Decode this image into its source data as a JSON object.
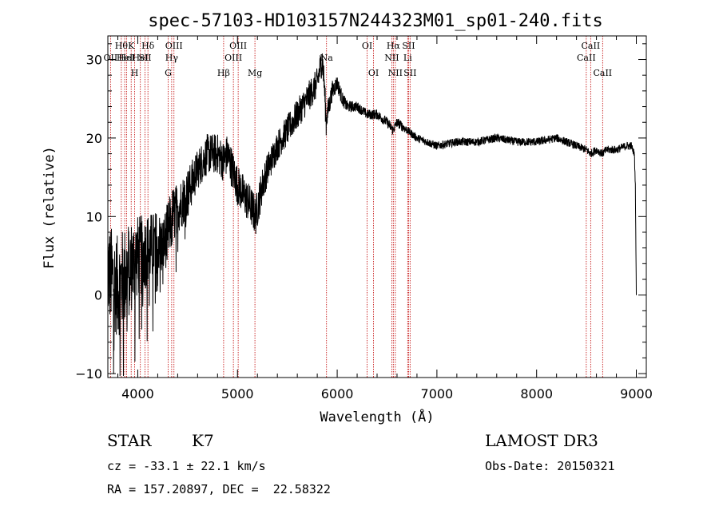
{
  "chart_data": {
    "type": "line",
    "title": "spec-57103-HD103157N244323M01_sp01-240.fits",
    "xlabel": "Wavelength (Å)",
    "ylabel": "Flux (relative)",
    "xlim": [
      3700,
      9100
    ],
    "ylim": [
      -10.5,
      33
    ],
    "xticks": [
      4000,
      5000,
      6000,
      7000,
      8000,
      9000
    ],
    "yticks": [
      -10,
      0,
      10,
      20,
      30
    ],
    "spectrum_anchors": {
      "x": [
        3700,
        3750,
        3800,
        3850,
        3900,
        3950,
        4000,
        4050,
        4100,
        4150,
        4200,
        4250,
        4300,
        4350,
        4400,
        4450,
        4500,
        4600,
        4700,
        4800,
        4860,
        4900,
        4950,
        5000,
        5050,
        5100,
        5150,
        5180,
        5250,
        5300,
        5400,
        5500,
        5600,
        5700,
        5750,
        5800,
        5830,
        5850,
        5870,
        5890,
        5900,
        5950,
        6000,
        6050,
        6100,
        6200,
        6300,
        6400,
        6500,
        6560,
        6600,
        6700,
        6800,
        6900,
        7000,
        7200,
        7400,
        7600,
        7800,
        8000,
        8200,
        8400,
        8500,
        8540,
        8600,
        8660,
        8700,
        8800,
        8900,
        8950,
        8980,
        8990,
        9000
      ],
      "y": [
        3,
        2,
        1,
        2,
        3,
        4,
        5,
        5,
        6,
        6,
        7,
        6,
        8,
        10,
        11,
        12,
        13,
        16,
        18,
        18,
        17,
        18,
        16,
        14,
        13,
        12,
        11,
        10,
        14,
        16,
        19,
        21,
        23,
        25,
        26,
        27,
        29,
        30,
        27,
        22,
        23,
        26,
        27,
        25,
        24,
        24,
        23,
        23,
        22,
        21,
        22,
        21,
        20,
        19.5,
        19,
        19.5,
        19.5,
        20,
        19.5,
        19.5,
        20,
        19,
        18.5,
        18,
        18.5,
        18,
        18.5,
        18.5,
        19,
        19,
        18,
        14,
        0
      ],
      "noise_amplitude": [
        5,
        5,
        5,
        5,
        5,
        4.5,
        4,
        4,
        3.5,
        3.5,
        3,
        3,
        3,
        3,
        2.5,
        2.5,
        2.5,
        2,
        2,
        2,
        2,
        2,
        2,
        2,
        2,
        2,
        2,
        2,
        1.8,
        1.6,
        1.5,
        1.5,
        1.5,
        1.5,
        1.5,
        1.5,
        1.5,
        1.5,
        1.5,
        1.5,
        1.2,
        1,
        0.8,
        0.7,
        0.6,
        0.5,
        0.5,
        0.5,
        0.5,
        0.5,
        0.5,
        0.4,
        0.4,
        0.4,
        0.4,
        0.4,
        0.4,
        0.4,
        0.4,
        0.4,
        0.4,
        0.4,
        0.4,
        0.4,
        0.4,
        0.4,
        0.4,
        0.4,
        0.4,
        0.4,
        0.3,
        0.2,
        0
      ]
    },
    "spectral_lines": [
      {
        "wave": 3727,
        "label": "OII",
        "row": 2
      },
      {
        "wave": 3835,
        "label": "Hθ",
        "row": 1
      },
      {
        "wave": 3869,
        "label": "HeI",
        "row": 2
      },
      {
        "wave": 3889,
        "label": "HeI",
        "row": 2
      },
      {
        "wave": 3934,
        "label": "K",
        "row": 1
      },
      {
        "wave": 3969,
        "label": "H",
        "row": 3
      },
      {
        "wave": 4026,
        "label": "HeI",
        "row": 2
      },
      {
        "wave": 4072,
        "label": "SII",
        "row": 2
      },
      {
        "wave": 4102,
        "label": "Hδ",
        "row": 1
      },
      {
        "wave": 4305,
        "label": "G",
        "row": 3
      },
      {
        "wave": 4340,
        "label": "Hγ",
        "row": 2
      },
      {
        "wave": 4363,
        "label": "OIII",
        "row": 1
      },
      {
        "wave": 4861,
        "label": "Hβ",
        "row": 3
      },
      {
        "wave": 4959,
        "label": "OIII",
        "row": 2
      },
      {
        "wave": 5007,
        "label": "OIII",
        "row": 1
      },
      {
        "wave": 5175,
        "label": "Mg",
        "row": 3
      },
      {
        "wave": 5893,
        "label": "Na",
        "row": 2
      },
      {
        "wave": 6300,
        "label": "OI",
        "row": 1
      },
      {
        "wave": 6364,
        "label": "OI",
        "row": 3
      },
      {
        "wave": 6548,
        "label": "NII",
        "row": 2
      },
      {
        "wave": 6563,
        "label": "Hα",
        "row": 1
      },
      {
        "wave": 6583,
        "label": "NII",
        "row": 3
      },
      {
        "wave": 6707,
        "label": "Li",
        "row": 2
      },
      {
        "wave": 6716,
        "label": "SII",
        "row": 1
      },
      {
        "wave": 6731,
        "label": "SII",
        "row": 3
      },
      {
        "wave": 8498,
        "label": "CaII",
        "row": 2
      },
      {
        "wave": 8542,
        "label": "CaII",
        "row": 1
      },
      {
        "wave": 8662,
        "label": "CaII",
        "row": 3
      }
    ]
  },
  "info": {
    "object_class": "STAR",
    "subclass": "K7",
    "survey": "LAMOST DR3",
    "redshift": "cz = -33.1 ± 22.1 km/s",
    "obs_date": "Obs-Date: 20150321",
    "coords": "RA = 157.20897, DEC =  22.58322"
  },
  "colors": {
    "line_marker": "#c00000",
    "spectrum": "#000000"
  }
}
